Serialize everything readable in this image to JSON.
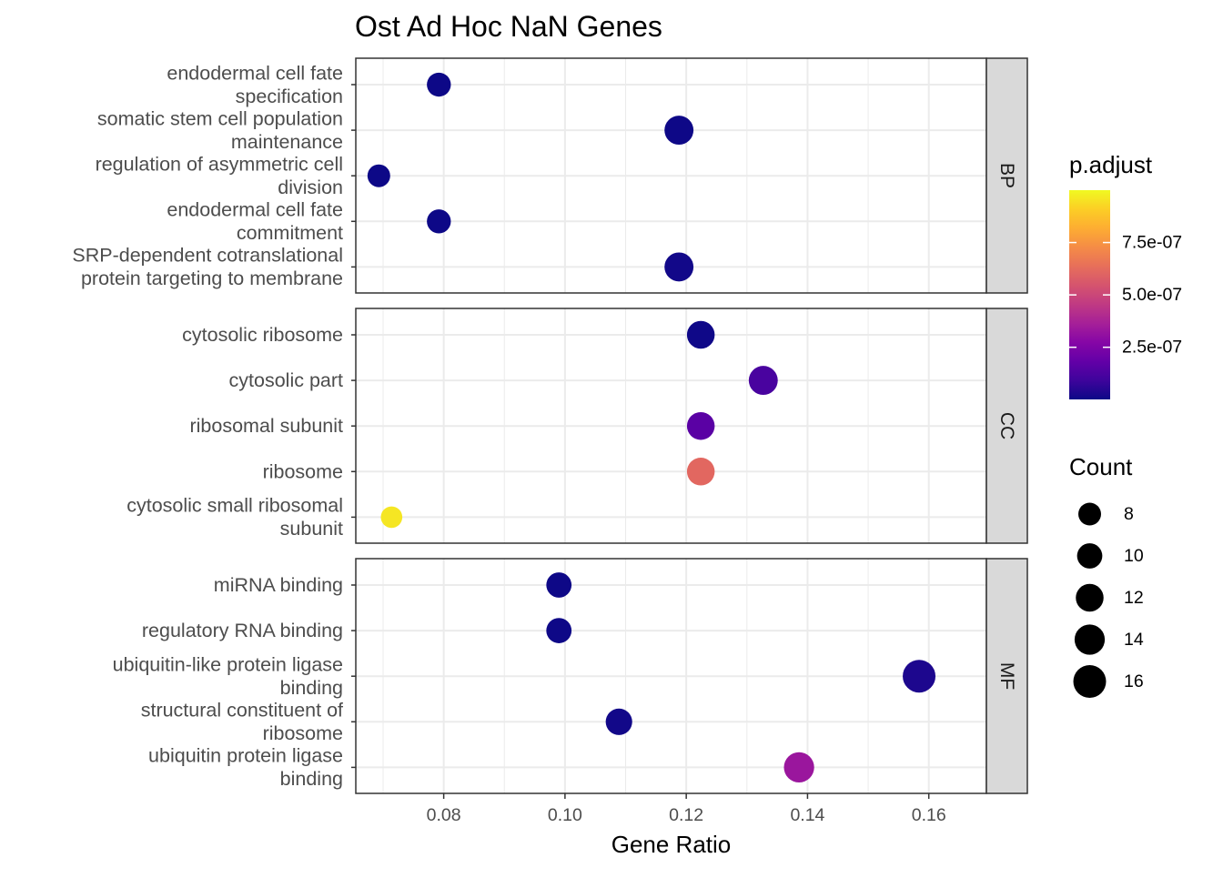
{
  "chart_data": {
    "type": "scatter",
    "title": "Ost Ad Hoc NaN Genes",
    "xlabel": "Gene Ratio",
    "ylabel": "",
    "xlim": [
      0.0655,
      0.1695
    ],
    "x_ticks": [
      0.08,
      0.1,
      0.12,
      0.14,
      0.16
    ],
    "x_tick_labels": [
      "0.08",
      "0.10",
      "0.12",
      "0.14",
      "0.16"
    ],
    "grid": true,
    "facets": [
      {
        "name": "BP",
        "terms": [
          {
            "label": [
              "endodermal cell fate",
              "specification"
            ],
            "gene_ratio": 0.0792,
            "count": 9,
            "p_adjust": 1e-09
          },
          {
            "label": [
              "somatic stem cell population",
              "maintenance"
            ],
            "gene_ratio": 0.1188,
            "count": 13,
            "p_adjust": 2e-09
          },
          {
            "label": [
              "regulation of asymmetric cell",
              "division"
            ],
            "gene_ratio": 0.0693,
            "count": 8,
            "p_adjust": 1e-09
          },
          {
            "label": [
              "endodermal cell fate",
              "commitment"
            ],
            "gene_ratio": 0.0792,
            "count": 9,
            "p_adjust": 1e-09
          },
          {
            "label": [
              "SRP-dependent cotranslational",
              "protein targeting to membrane"
            ],
            "gene_ratio": 0.1188,
            "count": 13,
            "p_adjust": 1e-08
          }
        ]
      },
      {
        "name": "CC",
        "terms": [
          {
            "label": [
              "cytosolic ribosome"
            ],
            "gene_ratio": 0.1224,
            "count": 12,
            "p_adjust": 5e-09
          },
          {
            "label": [
              "cytosolic part"
            ],
            "gene_ratio": 0.1327,
            "count": 13,
            "p_adjust": 1.2e-07
          },
          {
            "label": [
              "ribosomal subunit"
            ],
            "gene_ratio": 0.1224,
            "count": 12,
            "p_adjust": 1.6e-07
          },
          {
            "label": [
              "ribosome"
            ],
            "gene_ratio": 0.1224,
            "count": 12,
            "p_adjust": 6.1e-07
          },
          {
            "label": [
              "cytosolic small ribosomal",
              "subunit"
            ],
            "gene_ratio": 0.0714,
            "count": 7,
            "p_adjust": 9.6e-07
          }
        ]
      },
      {
        "name": "MF",
        "terms": [
          {
            "label": [
              "miRNA binding"
            ],
            "gene_ratio": 0.099,
            "count": 10,
            "p_adjust": 2e-09
          },
          {
            "label": [
              "regulatory RNA binding"
            ],
            "gene_ratio": 0.099,
            "count": 10,
            "p_adjust": 2e-09
          },
          {
            "label": [
              "ubiquitin-like protein ligase",
              "binding"
            ],
            "gene_ratio": 0.1584,
            "count": 16,
            "p_adjust": 3e-08
          },
          {
            "label": [
              "structural constituent of",
              "ribosome"
            ],
            "gene_ratio": 0.1089,
            "count": 11,
            "p_adjust": 1e-08
          },
          {
            "label": [
              "ubiquitin protein ligase",
              "binding"
            ],
            "gene_ratio": 0.1386,
            "count": 14,
            "p_adjust": 3.3e-07
          }
        ]
      }
    ],
    "color_legend": {
      "title": "p.adjust",
      "min": 1e-09,
      "max": 1e-06,
      "ticks": [
        2.5e-07,
        5e-07,
        7.5e-07
      ],
      "tick_labels": [
        "2.5e-07",
        "5.0e-07",
        "7.5e-07"
      ],
      "palette": [
        "#0d0887",
        "#3e049c",
        "#6300a7",
        "#8606a6",
        "#a62098",
        "#c03a83",
        "#d5546e",
        "#e76f5a",
        "#f58c46",
        "#fdad32",
        "#fcce25",
        "#f0f921"
      ]
    },
    "size_legend": {
      "title": "Count",
      "values": [
        8,
        10,
        12,
        14,
        16
      ],
      "labels": [
        "8",
        "10",
        "12",
        "14",
        "16"
      ]
    }
  }
}
